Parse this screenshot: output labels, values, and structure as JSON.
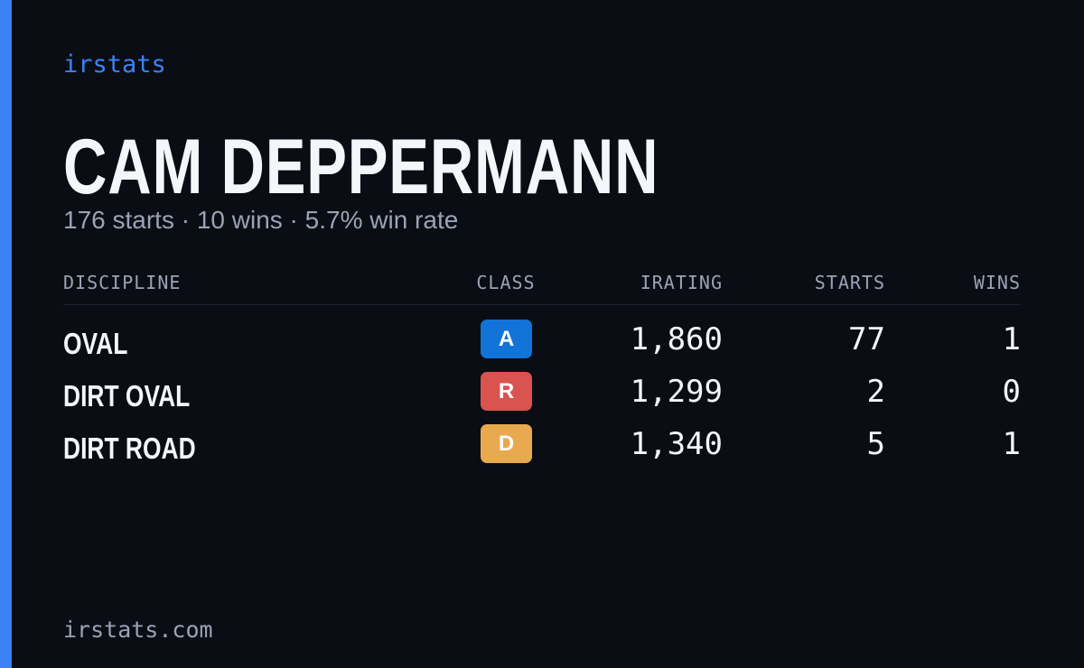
{
  "brand": "irstats",
  "name": "CAM DEPPERMANN",
  "subtitle": "176 starts · 10 wins · 5.7% win rate",
  "table": {
    "headers": [
      "DISCIPLINE",
      "CLASS",
      "IRATING",
      "STARTS",
      "WINS"
    ],
    "rows": [
      {
        "discipline": "OVAL",
        "class": "A",
        "class_color": "#1273d8",
        "irating": "1,860",
        "starts": "77",
        "wins": "1"
      },
      {
        "discipline": "DIRT OVAL",
        "class": "R",
        "class_color": "#d9534f",
        "irating": "1,299",
        "starts": "2",
        "wins": "0"
      },
      {
        "discipline": "DIRT ROAD",
        "class": "D",
        "class_color": "#e9a94e",
        "irating": "1,340",
        "starts": "5",
        "wins": "1"
      }
    ]
  },
  "footer": "irstats.com"
}
